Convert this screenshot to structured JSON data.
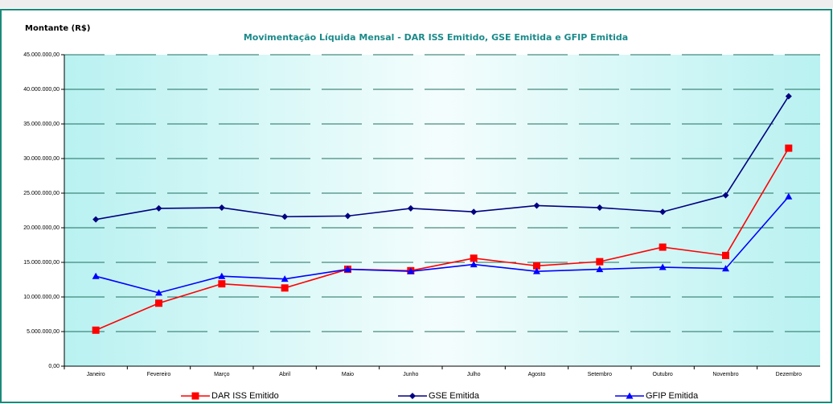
{
  "chart_data": {
    "type": "line",
    "title": "Movimentação Líquida Mensal - DAR ISS Emitido, GSE Emitida e GFIP Emitida",
    "y_label": "Montante (R$)",
    "categories": [
      "Janeiro",
      "Fevereiro",
      "Março",
      "Abril",
      "Maio",
      "Junho",
      "Julho",
      "Agosto",
      "Setembro",
      "Outubro",
      "Novembro",
      "Dezembro"
    ],
    "series": [
      {
        "name": "DAR ISS Emitido",
        "color": "#ff0000",
        "marker": "square",
        "values": [
          5200000,
          9100000,
          11900000,
          11300000,
          14000000,
          13800000,
          15600000,
          14500000,
          15100000,
          17200000,
          16000000,
          31500000
        ]
      },
      {
        "name": "GSE Emitida",
        "color": "#000080",
        "marker": "diamond",
        "values": [
          21200000,
          22800000,
          22900000,
          21600000,
          21700000,
          22800000,
          22300000,
          23200000,
          22900000,
          22300000,
          24700000,
          39000000
        ]
      },
      {
        "name": "GFIP Emitida",
        "color": "#0000ff",
        "marker": "triangle",
        "values": [
          13000000,
          10600000,
          13000000,
          12600000,
          14000000,
          13700000,
          14700000,
          13700000,
          14000000,
          14300000,
          14100000,
          24500000
        ]
      }
    ],
    "ylim": [
      0,
      45000000
    ],
    "yticks": [
      {
        "value": 0,
        "label": "0,00"
      },
      {
        "value": 5000000,
        "label": "5.000.000,00"
      },
      {
        "value": 10000000,
        "label": "10.000.000,00"
      },
      {
        "value": 15000000,
        "label": "15.000.000,00"
      },
      {
        "value": 20000000,
        "label": "20.000.000,00"
      },
      {
        "value": 25000000,
        "label": "25.000.000,00"
      },
      {
        "value": 30000000,
        "label": "30.000.000,00"
      },
      {
        "value": 35000000,
        "label": "35.000.000,00"
      },
      {
        "value": 40000000,
        "label": "40.000.000,00"
      },
      {
        "value": 45000000,
        "label": "45.000.000,00"
      }
    ],
    "grid": true,
    "legend": "bottom"
  }
}
